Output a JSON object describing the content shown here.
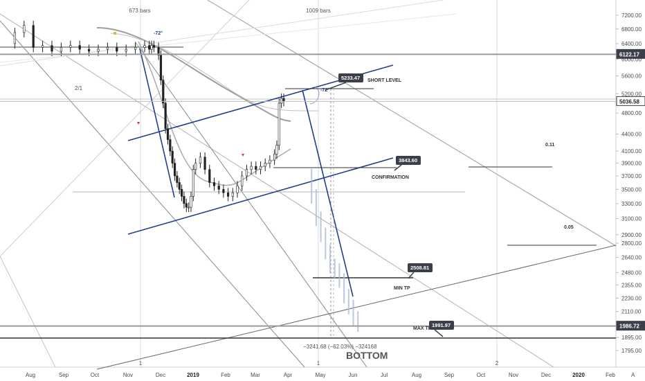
{
  "chart_data": {
    "type": "candlestick",
    "symbol_hint": "BTC",
    "y_axis": {
      "scale": "log",
      "ylim": [
        1700,
        7600
      ],
      "ticks": [
        "7200.00",
        "6800.00",
        "6400.00",
        "6000.00",
        "5600.00",
        "5200.00",
        "4800.00",
        "4400.00",
        "4100.00",
        "3900.00",
        "3700.00",
        "3500.00",
        "3300.00",
        "3100.00",
        "2900.00",
        "2800.00",
        "2640.00",
        "2480.00",
        "2355.00",
        "2230.00",
        "2110.00",
        "1990.00",
        "1895.00",
        "1795.00"
      ],
      "price_tags": [
        {
          "text": "6122.17",
          "value": 6122.17,
          "style": "dark"
        },
        {
          "text": "5036.58",
          "value": 5036.58,
          "style": "outline"
        },
        {
          "text": "1986.72",
          "value": 1986.72,
          "style": "dark"
        }
      ]
    },
    "x_axis": {
      "months": [
        "Aug",
        "Sep",
        "Oct",
        "Nov",
        "Dec",
        "2019",
        "Feb",
        "Mar",
        "Apr",
        "May",
        "Jun",
        "Jul",
        "Aug",
        "Sep",
        "Oct",
        "Nov",
        "Dec",
        "2020",
        "Feb"
      ],
      "bold": [
        "2019",
        "2020"
      ]
    },
    "annotations": {
      "bars_labels": [
        "673 bars",
        "1009 bars"
      ],
      "angle_labels": [
        "-72°",
        "-72°"
      ],
      "fib_label": "2/1",
      "cycle_marks": [
        "1",
        "1",
        "2"
      ],
      "level_labels": [
        {
          "text": "SHORT LEVEL",
          "price": 5380
        },
        {
          "text": "CONFIRMATION",
          "price": 3720
        },
        {
          "text": "MIN TP",
          "price": 2420
        },
        {
          "text": "MAX TP",
          "price": 2040
        }
      ],
      "callouts": [
        {
          "text": "5233.47",
          "price": 5233.47
        },
        {
          "text": "3843.60",
          "price": 3843.6
        },
        {
          "text": "2508.81",
          "price": 2508.81
        },
        {
          "text": "1991.97",
          "price": 1991.97
        }
      ],
      "ratios": [
        "0.11",
        "0.05"
      ],
      "measure": "−3241.68 (−62.03%) −324168",
      "bottom": "BOTTOM"
    },
    "price_path": [
      [
        0,
        6400
      ],
      [
        4,
        6700
      ],
      [
        8,
        6900
      ],
      [
        12,
        6300
      ],
      [
        16,
        6350
      ],
      [
        20,
        6200
      ],
      [
        24,
        6300
      ],
      [
        28,
        6350
      ],
      [
        32,
        6250
      ],
      [
        36,
        6200
      ],
      [
        40,
        6250
      ],
      [
        44,
        6300
      ],
      [
        48,
        6200
      ],
      [
        52,
        6250
      ],
      [
        56,
        6300
      ],
      [
        60,
        6350
      ],
      [
        62,
        6250
      ],
      [
        63,
        6350
      ],
      [
        64,
        6300
      ],
      [
        66,
        6100
      ],
      [
        67,
        5500
      ],
      [
        68,
        5000
      ],
      [
        69,
        4500
      ],
      [
        70,
        4300
      ],
      [
        71,
        4100
      ],
      [
        72,
        3900
      ],
      [
        73,
        3700
      ],
      [
        74,
        3600
      ],
      [
        75,
        3500
      ],
      [
        76,
        3400
      ],
      [
        77,
        3300
      ],
      [
        78,
        3250
      ],
      [
        79,
        3250
      ],
      [
        80,
        3400
      ],
      [
        81,
        3800
      ],
      [
        82,
        3900
      ],
      [
        84,
        4000
      ],
      [
        86,
        3800
      ],
      [
        88,
        3600
      ],
      [
        90,
        3550
      ],
      [
        92,
        3500
      ],
      [
        94,
        3450
      ],
      [
        96,
        3400
      ],
      [
        98,
        3450
      ],
      [
        100,
        3550
      ],
      [
        102,
        3700
      ],
      [
        104,
        3800
      ],
      [
        106,
        3850
      ],
      [
        108,
        3800
      ],
      [
        110,
        3850
      ],
      [
        112,
        3900
      ],
      [
        114,
        3950
      ],
      [
        116,
        4050
      ],
      [
        117,
        4200
      ],
      [
        118,
        5000
      ],
      [
        119,
        5100
      ],
      [
        120,
        5036
      ]
    ],
    "projection_path": [
      [
        130,
        3700
      ],
      [
        132,
        3400
      ],
      [
        134,
        3100
      ],
      [
        136,
        2900
      ],
      [
        138,
        2700
      ],
      [
        140,
        2550
      ],
      [
        142,
        2500
      ],
      [
        144,
        2400
      ],
      [
        146,
        2250
      ],
      [
        148,
        2150
      ],
      [
        150,
        2050
      ],
      [
        152,
        2000
      ]
    ]
  }
}
